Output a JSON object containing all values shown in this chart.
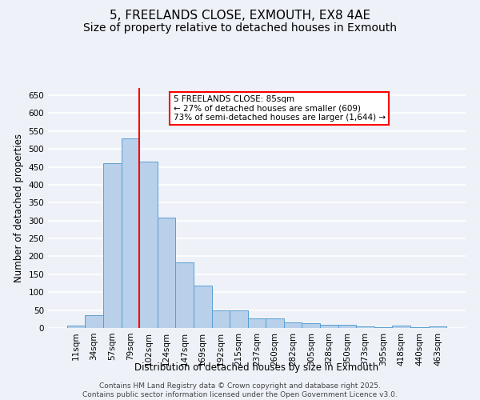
{
  "title": "5, FREELANDS CLOSE, EXMOUTH, EX8 4AE",
  "subtitle": "Size of property relative to detached houses in Exmouth",
  "xlabel": "Distribution of detached houses by size in Exmouth",
  "ylabel": "Number of detached properties",
  "footer_line1": "Contains HM Land Registry data © Crown copyright and database right 2025.",
  "footer_line2": "Contains public sector information licensed under the Open Government Licence v3.0.",
  "bin_labels": [
    "11sqm",
    "34sqm",
    "57sqm",
    "79sqm",
    "102sqm",
    "124sqm",
    "147sqm",
    "169sqm",
    "192sqm",
    "215sqm",
    "237sqm",
    "260sqm",
    "282sqm",
    "305sqm",
    "328sqm",
    "350sqm",
    "373sqm",
    "395sqm",
    "418sqm",
    "440sqm",
    "463sqm"
  ],
  "bar_values": [
    6,
    35,
    460,
    530,
    465,
    308,
    184,
    118,
    50,
    50,
    27,
    27,
    16,
    13,
    9,
    9,
    5,
    2,
    7,
    2,
    4
  ],
  "bar_color": "#b8d0ea",
  "bar_edge_color": "#5a9fd4",
  "property_line_x": 3.5,
  "annotation_text": "5 FREELANDS CLOSE: 85sqm\n← 27% of detached houses are smaller (609)\n73% of semi-detached houses are larger (1,644) →",
  "annotation_box_color": "white",
  "annotation_box_edge_color": "red",
  "vline_color": "red",
  "ylim": [
    0,
    670
  ],
  "yticks": [
    0,
    50,
    100,
    150,
    200,
    250,
    300,
    350,
    400,
    450,
    500,
    550,
    600,
    650
  ],
  "background_color": "#eef2f8",
  "grid_color": "white",
  "title_fontsize": 11,
  "subtitle_fontsize": 10,
  "axis_label_fontsize": 8.5,
  "tick_fontsize": 7.5,
  "footer_fontsize": 6.5
}
